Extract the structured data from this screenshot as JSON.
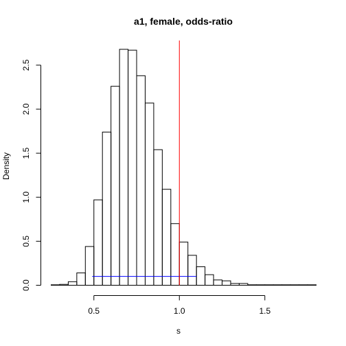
{
  "chart_data": {
    "type": "histogram",
    "title": "a1, female, odds-ratio",
    "xlabel": "s",
    "ylabel": "Density",
    "xlim": [
      0.25,
      1.8
    ],
    "ylim": [
      0,
      2.78
    ],
    "bin_width": 0.05,
    "bin_start": 0.25,
    "densities": [
      0.005,
      0.01,
      0.04,
      0.14,
      0.44,
      0.97,
      1.74,
      2.26,
      2.68,
      2.67,
      2.38,
      2.07,
      1.54,
      1.09,
      0.7,
      0.49,
      0.34,
      0.21,
      0.12,
      0.06,
      0.05,
      0.02,
      0.02,
      0.005,
      0.005,
      0.005,
      0.005,
      0.005,
      0.005,
      0.005,
      0.005
    ],
    "xticks": [
      0.5,
      1.0,
      1.5
    ],
    "xtick_labels": [
      "0.5",
      "1.0",
      "1.5"
    ],
    "yticks": [
      0.0,
      0.5,
      1.0,
      1.5,
      2.0,
      2.5
    ],
    "ytick_labels": [
      "0.0",
      "0.5",
      "1.0",
      "1.5",
      "2.0",
      "2.5"
    ],
    "reference_line": {
      "x": 1.0,
      "color": "#ff0000"
    },
    "interval_segment": {
      "x0": 0.49,
      "x1": 1.1,
      "y": 0.1,
      "color": "#0000ff"
    },
    "bar_stroke": "#000000",
    "bar_fill": "none"
  }
}
